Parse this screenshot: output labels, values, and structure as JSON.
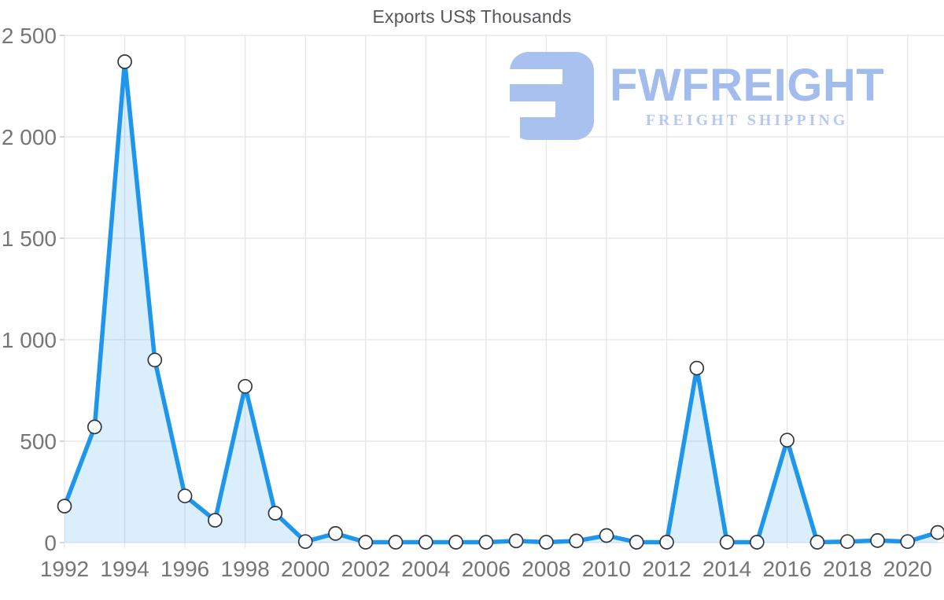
{
  "title": "Exports US$ Thousands",
  "watermark": {
    "brand": "FWFREIGHT",
    "tagline": "FREIGHT SHIPPING",
    "logo_color": "#a9c1ef",
    "brand_color": "#a2bcee",
    "tagline_color": "#b7c9f2"
  },
  "chart_data": {
    "type": "area",
    "title": "Exports US$ Thousands",
    "xlabel": "",
    "ylabel": "",
    "x": [
      1992,
      1993,
      1994,
      1995,
      1996,
      1997,
      1998,
      1999,
      2000,
      2001,
      2002,
      2003,
      2004,
      2005,
      2006,
      2007,
      2008,
      2009,
      2010,
      2011,
      2012,
      2013,
      2014,
      2015,
      2016,
      2017,
      2018,
      2019,
      2020,
      2021
    ],
    "values": [
      180,
      570,
      2370,
      900,
      230,
      110,
      770,
      145,
      5,
      45,
      2,
      2,
      2,
      2,
      2,
      8,
      2,
      8,
      35,
      2,
      2,
      860,
      2,
      2,
      505,
      2,
      5,
      10,
      5,
      50
    ],
    "ylim": [
      0,
      2500
    ],
    "y_ticks": [
      0,
      500,
      1000,
      1500,
      2000,
      2500
    ],
    "y_tick_labels": [
      "0",
      "500",
      "1 000",
      "1 500",
      "2 000",
      "2 500"
    ],
    "x_tick_years": [
      1992,
      1994,
      1996,
      1998,
      2000,
      2002,
      2004,
      2006,
      2008,
      2010,
      2012,
      2014,
      2016,
      2018,
      2020
    ],
    "x_tick_labels": [
      "1992",
      "1994",
      "1996",
      "1998",
      "2000",
      "2002",
      "2004",
      "2006",
      "2008",
      "2010",
      "2012",
      "2014",
      "2016",
      "2018",
      "2020"
    ],
    "grid": true,
    "legend": "none",
    "line_color": "#1e96ec",
    "fill_opacity": 0.16,
    "marker_fill": "#ffffff",
    "marker_stroke": "#34383e",
    "grid_color": "#e4e4e8",
    "tick_color": "#c3c3c8"
  }
}
